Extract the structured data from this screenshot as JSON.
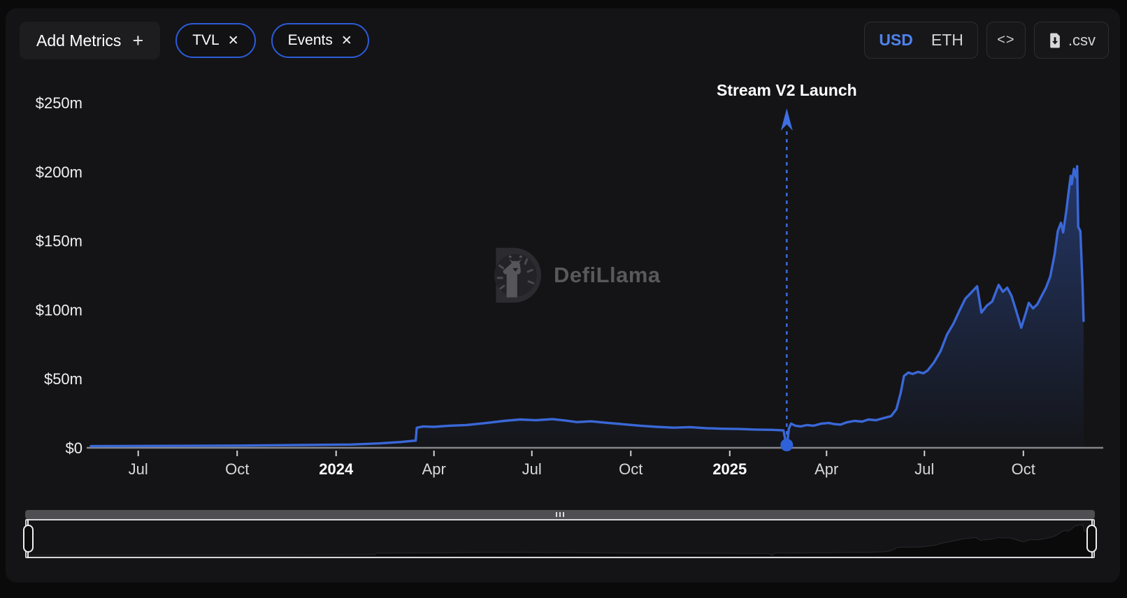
{
  "header": {
    "add_metrics": {
      "label": "Add Metrics",
      "icon": "+"
    },
    "metric_pills": [
      {
        "label": "TVL",
        "close_icon": "✕"
      },
      {
        "label": "Events",
        "close_icon": "✕"
      }
    ],
    "currency_toggle": {
      "options": [
        "USD",
        "ETH"
      ],
      "selected": "USD"
    },
    "embed_button": {
      "label": "<>"
    },
    "csv_button": {
      "label": ".csv"
    }
  },
  "watermark": {
    "text": "DefiLlama"
  },
  "colors": {
    "line_accent": "#3a68d8",
    "event_accent": "#3f6fe0",
    "pill_border": "#2b5cd9",
    "axis": "#85868b",
    "panel_bg": "#141416",
    "mini_fill": "#0a0a0b"
  },
  "chart_data": {
    "type": "area",
    "unit": "USD millions",
    "grid": false,
    "legend_position": "none",
    "x_domain": [
      "2023-05-18",
      "2025-11-28"
    ],
    "ylim": [
      0,
      250
    ],
    "y_ticks": [
      {
        "value": 0,
        "label": "$0"
      },
      {
        "value": 50,
        "label": "$50m"
      },
      {
        "value": 100,
        "label": "$100m"
      },
      {
        "value": 150,
        "label": "$150m"
      },
      {
        "value": 200,
        "label": "$200m"
      },
      {
        "value": 250,
        "label": "$250m"
      }
    ],
    "x_ticks": [
      {
        "date": "2023-07-01",
        "label": "Jul",
        "bold": false
      },
      {
        "date": "2023-10-01",
        "label": "Oct",
        "bold": false
      },
      {
        "date": "2024-01-01",
        "label": "2024",
        "bold": true
      },
      {
        "date": "2024-04-01",
        "label": "Apr",
        "bold": false
      },
      {
        "date": "2024-07-01",
        "label": "Jul",
        "bold": false
      },
      {
        "date": "2024-10-01",
        "label": "Oct",
        "bold": false
      },
      {
        "date": "2025-01-01",
        "label": "2025",
        "bold": true
      },
      {
        "date": "2025-04-01",
        "label": "Apr",
        "bold": false
      },
      {
        "date": "2025-07-01",
        "label": "Jul",
        "bold": false
      },
      {
        "date": "2025-10-01",
        "label": "Oct",
        "bold": false
      }
    ],
    "events": [
      {
        "date": "2025-02-23",
        "label": "Stream V2 Launch",
        "value_at_event": 0
      }
    ],
    "series": [
      {
        "name": "TVL",
        "color": "#3a68d8",
        "points": [
          [
            "2023-05-18",
            1.2
          ],
          [
            "2023-06-15",
            1.3
          ],
          [
            "2023-08-01",
            1.4
          ],
          [
            "2023-10-01",
            1.6
          ],
          [
            "2023-12-01",
            2.0
          ],
          [
            "2024-01-15",
            2.4
          ],
          [
            "2024-02-10",
            3.2
          ],
          [
            "2024-03-01",
            4.2
          ],
          [
            "2024-03-12",
            5.0
          ],
          [
            "2024-03-15",
            5.2
          ],
          [
            "2024-03-16",
            14.5
          ],
          [
            "2024-03-22",
            15.5
          ],
          [
            "2024-04-01",
            15.2
          ],
          [
            "2024-04-15",
            16.0
          ],
          [
            "2024-05-01",
            16.5
          ],
          [
            "2024-05-20",
            18.0
          ],
          [
            "2024-06-05",
            19.5
          ],
          [
            "2024-06-20",
            20.5
          ],
          [
            "2024-07-05",
            20.0
          ],
          [
            "2024-07-20",
            20.8
          ],
          [
            "2024-08-01",
            19.8
          ],
          [
            "2024-08-12",
            18.6
          ],
          [
            "2024-08-25",
            19.2
          ],
          [
            "2024-09-10",
            18.0
          ],
          [
            "2024-09-25",
            17.0
          ],
          [
            "2024-10-10",
            16.0
          ],
          [
            "2024-10-25",
            15.2
          ],
          [
            "2024-11-10",
            14.6
          ],
          [
            "2024-11-25",
            15.0
          ],
          [
            "2024-12-10",
            14.2
          ],
          [
            "2024-12-25",
            13.8
          ],
          [
            "2025-01-10",
            13.6
          ],
          [
            "2025-01-25",
            13.2
          ],
          [
            "2025-02-10",
            13.0
          ],
          [
            "2025-02-20",
            12.6
          ],
          [
            "2025-02-23",
            0.4
          ],
          [
            "2025-02-25",
            14.0
          ],
          [
            "2025-02-27",
            17.5
          ],
          [
            "2025-03-03",
            16.0
          ],
          [
            "2025-03-08",
            15.5
          ],
          [
            "2025-03-14",
            16.5
          ],
          [
            "2025-03-20",
            16.0
          ],
          [
            "2025-03-27",
            17.5
          ],
          [
            "2025-04-03",
            18.0
          ],
          [
            "2025-04-08",
            17.2
          ],
          [
            "2025-04-14",
            16.8
          ],
          [
            "2025-04-20",
            18.5
          ],
          [
            "2025-04-27",
            19.5
          ],
          [
            "2025-05-04",
            19.0
          ],
          [
            "2025-05-10",
            20.5
          ],
          [
            "2025-05-17",
            20.0
          ],
          [
            "2025-05-24",
            21.5
          ],
          [
            "2025-05-31",
            23.0
          ],
          [
            "2025-06-05",
            28.0
          ],
          [
            "2025-06-09",
            40.0
          ],
          [
            "2025-06-12",
            52.0
          ],
          [
            "2025-06-16",
            54.5
          ],
          [
            "2025-06-20",
            53.5
          ],
          [
            "2025-06-25",
            55.0
          ],
          [
            "2025-06-30",
            54.0
          ],
          [
            "2025-07-04",
            56.0
          ],
          [
            "2025-07-10",
            62.0
          ],
          [
            "2025-07-16",
            70.0
          ],
          [
            "2025-07-22",
            82.0
          ],
          [
            "2025-07-28",
            90.0
          ],
          [
            "2025-08-03",
            100.0
          ],
          [
            "2025-08-08",
            108.0
          ],
          [
            "2025-08-13",
            112.0
          ],
          [
            "2025-08-19",
            117.0
          ],
          [
            "2025-08-23",
            98.0
          ],
          [
            "2025-08-28",
            103.0
          ],
          [
            "2025-09-02",
            106.0
          ],
          [
            "2025-09-08",
            118.0
          ],
          [
            "2025-09-12",
            113.0
          ],
          [
            "2025-09-16",
            116.0
          ],
          [
            "2025-09-20",
            110.0
          ],
          [
            "2025-09-24",
            100.0
          ],
          [
            "2025-09-29",
            87.0
          ],
          [
            "2025-10-03",
            97.0
          ],
          [
            "2025-10-06",
            105.0
          ],
          [
            "2025-10-10",
            101.0
          ],
          [
            "2025-10-14",
            104.0
          ],
          [
            "2025-10-18",
            110.0
          ],
          [
            "2025-10-22",
            116.0
          ],
          [
            "2025-10-26",
            124.0
          ],
          [
            "2025-10-30",
            140.0
          ],
          [
            "2025-11-02",
            157.0
          ],
          [
            "2025-11-05",
            163.0
          ],
          [
            "2025-11-07",
            156.0
          ],
          [
            "2025-11-10",
            172.0
          ],
          [
            "2025-11-12",
            185.0
          ],
          [
            "2025-11-14",
            197.0
          ],
          [
            "2025-11-15",
            191.0
          ],
          [
            "2025-11-17",
            202.0
          ],
          [
            "2025-11-19",
            196.0
          ],
          [
            "2025-11-20",
            204.0
          ],
          [
            "2025-11-21",
            160.0
          ],
          [
            "2025-11-23",
            157.0
          ],
          [
            "2025-11-25",
            118.0
          ],
          [
            "2025-11-26",
            92.0
          ]
        ]
      }
    ]
  }
}
